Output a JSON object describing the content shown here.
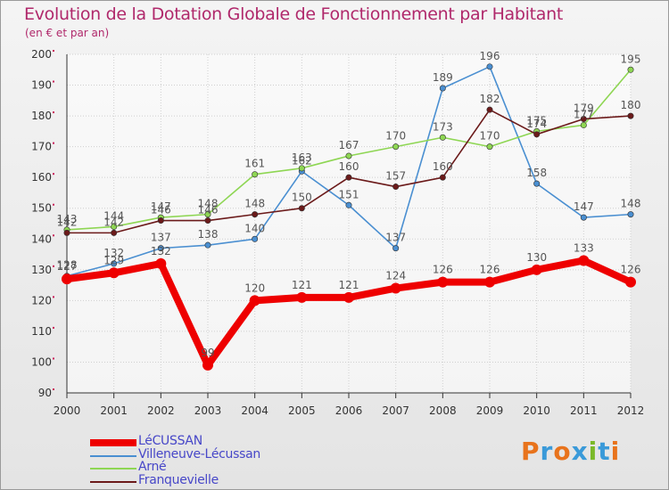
{
  "title": "Evolution de la Dotation Globale de Fonctionnement par Habitant",
  "subtitle": "(en € et par an)",
  "logo": {
    "text": "Proxiti",
    "colors": [
      "#e8731c",
      "#3a9ad9",
      "#e8731c",
      "#3a9ad9",
      "#7bb928",
      "#3a9ad9",
      "#e8731c"
    ]
  },
  "chart_data": {
    "type": "line",
    "title": "Evolution de la Dotation Globale de Fonctionnement par Habitant",
    "subtitle": "(en € et par an)",
    "xlabel": "",
    "ylabel": "",
    "x": [
      2000,
      2001,
      2002,
      2003,
      2004,
      2005,
      2006,
      2007,
      2008,
      2009,
      2010,
      2011,
      2012
    ],
    "ylim": [
      90,
      200
    ],
    "yticks": [
      90,
      100,
      110,
      120,
      130,
      140,
      150,
      160,
      170,
      180,
      190,
      200
    ],
    "grid": true,
    "legend_position": "bottom-left",
    "series": [
      {
        "name": "LéCUSSAN",
        "color": "#ee0000",
        "values": [
          127,
          129,
          132,
          99,
          120,
          121,
          121,
          124,
          126,
          126,
          130,
          133,
          126
        ]
      },
      {
        "name": "Villeneuve-Lécussan",
        "color": "#4a8fd1",
        "values": [
          128,
          132,
          137,
          138,
          140,
          162,
          151,
          137,
          189,
          196,
          158,
          147,
          148
        ]
      },
      {
        "name": "Arné",
        "color": "#8ed653",
        "values": [
          143,
          144,
          147,
          148,
          161,
          163,
          167,
          170,
          173,
          170,
          175,
          177,
          195
        ]
      },
      {
        "name": "Franquevielle",
        "color": "#6b1a1a",
        "values": [
          142,
          142,
          146,
          146,
          148,
          150,
          160,
          157,
          160,
          182,
          174,
          179,
          180
        ]
      }
    ]
  }
}
